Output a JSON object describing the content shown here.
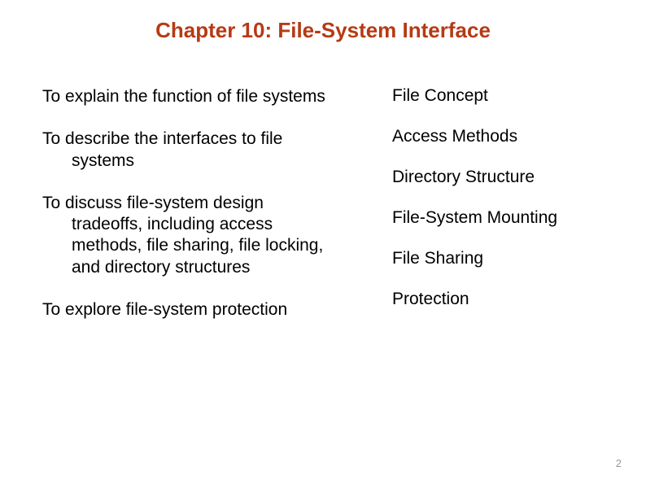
{
  "title": {
    "text": "Chapter 10:  File-System Interface",
    "color": "#b63a14",
    "fontsize": 26
  },
  "body_color": "#000000",
  "body_fontsize": 21,
  "objectives": [
    "To explain the function of file systems",
    "To describe the interfaces to file systems",
    "To discuss file-system design tradeoffs, including access methods, file sharing, file locking, and directory structures",
    "To explore file-system protection"
  ],
  "topics": [
    "File Concept",
    "Access Methods",
    "Directory Structure",
    "File-System Mounting",
    "File Sharing",
    "Protection"
  ],
  "page_number": {
    "text": "2",
    "color": "#9a9a9a",
    "fontsize": 13
  }
}
